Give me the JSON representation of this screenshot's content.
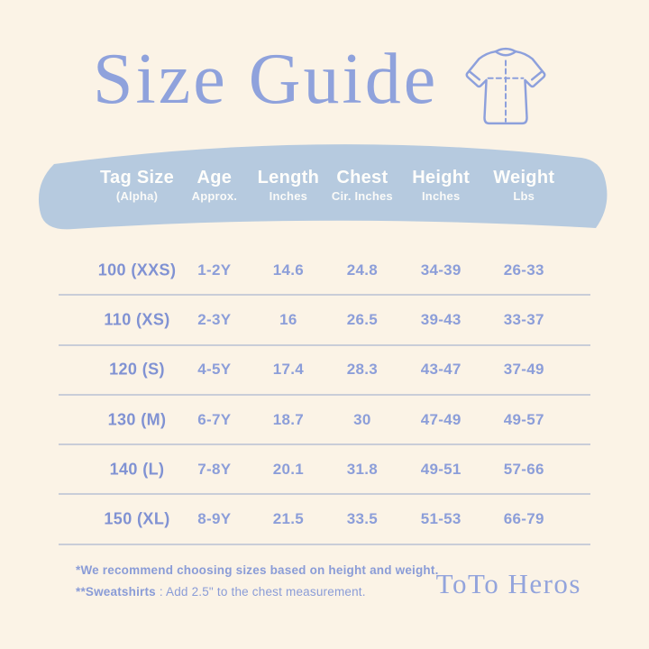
{
  "page": {
    "title": "Size Guide",
    "brand": "ToTo Heros"
  },
  "chart_data": {
    "type": "table",
    "title": "Size Guide",
    "columns": [
      {
        "label": "Tag Size",
        "sub": "(Alpha)"
      },
      {
        "label": "Age",
        "sub": "Approx."
      },
      {
        "label": "Length",
        "sub": "Inches"
      },
      {
        "label": "Chest",
        "sub": "Cir. Inches"
      },
      {
        "label": "Height",
        "sub": "Inches"
      },
      {
        "label": "Weight",
        "sub": "Lbs"
      }
    ],
    "rows": [
      [
        "100 (XXS)",
        "1-2Y",
        "14.6",
        "24.8",
        "34-39",
        "26-33"
      ],
      [
        "110 (XS)",
        "2-3Y",
        "16",
        "26.5",
        "39-43",
        "33-37"
      ],
      [
        "120 (S)",
        "4-5Y",
        "17.4",
        "28.3",
        "43-47",
        "37-49"
      ],
      [
        "130 (M)",
        "6-7Y",
        "18.7",
        "30",
        "47-49",
        "49-57"
      ],
      [
        "140 (L)",
        "7-8Y",
        "20.1",
        "31.8",
        "49-51",
        "57-66"
      ],
      [
        "150 (XL)",
        "8-9Y",
        "21.5",
        "33.5",
        "51-53",
        "66-79"
      ]
    ]
  },
  "footnotes": {
    "line1": "*We recommend choosing sizes based on height and weight.",
    "line2_bold": "**Sweatshirts",
    "line2_rest": " : Add 2.5\" to the chest measurement."
  },
  "icons": {
    "tshirt": "tshirt-outline-icon"
  },
  "colors": {
    "background": "#fbf3e6",
    "band": "#b6cadf",
    "accent_periwinkle": "#8fa2dc",
    "table_text": "#8c9ed9",
    "tag_text": "#8092d3",
    "divider": "#c9cdd8",
    "band_text": "#fffefb"
  }
}
